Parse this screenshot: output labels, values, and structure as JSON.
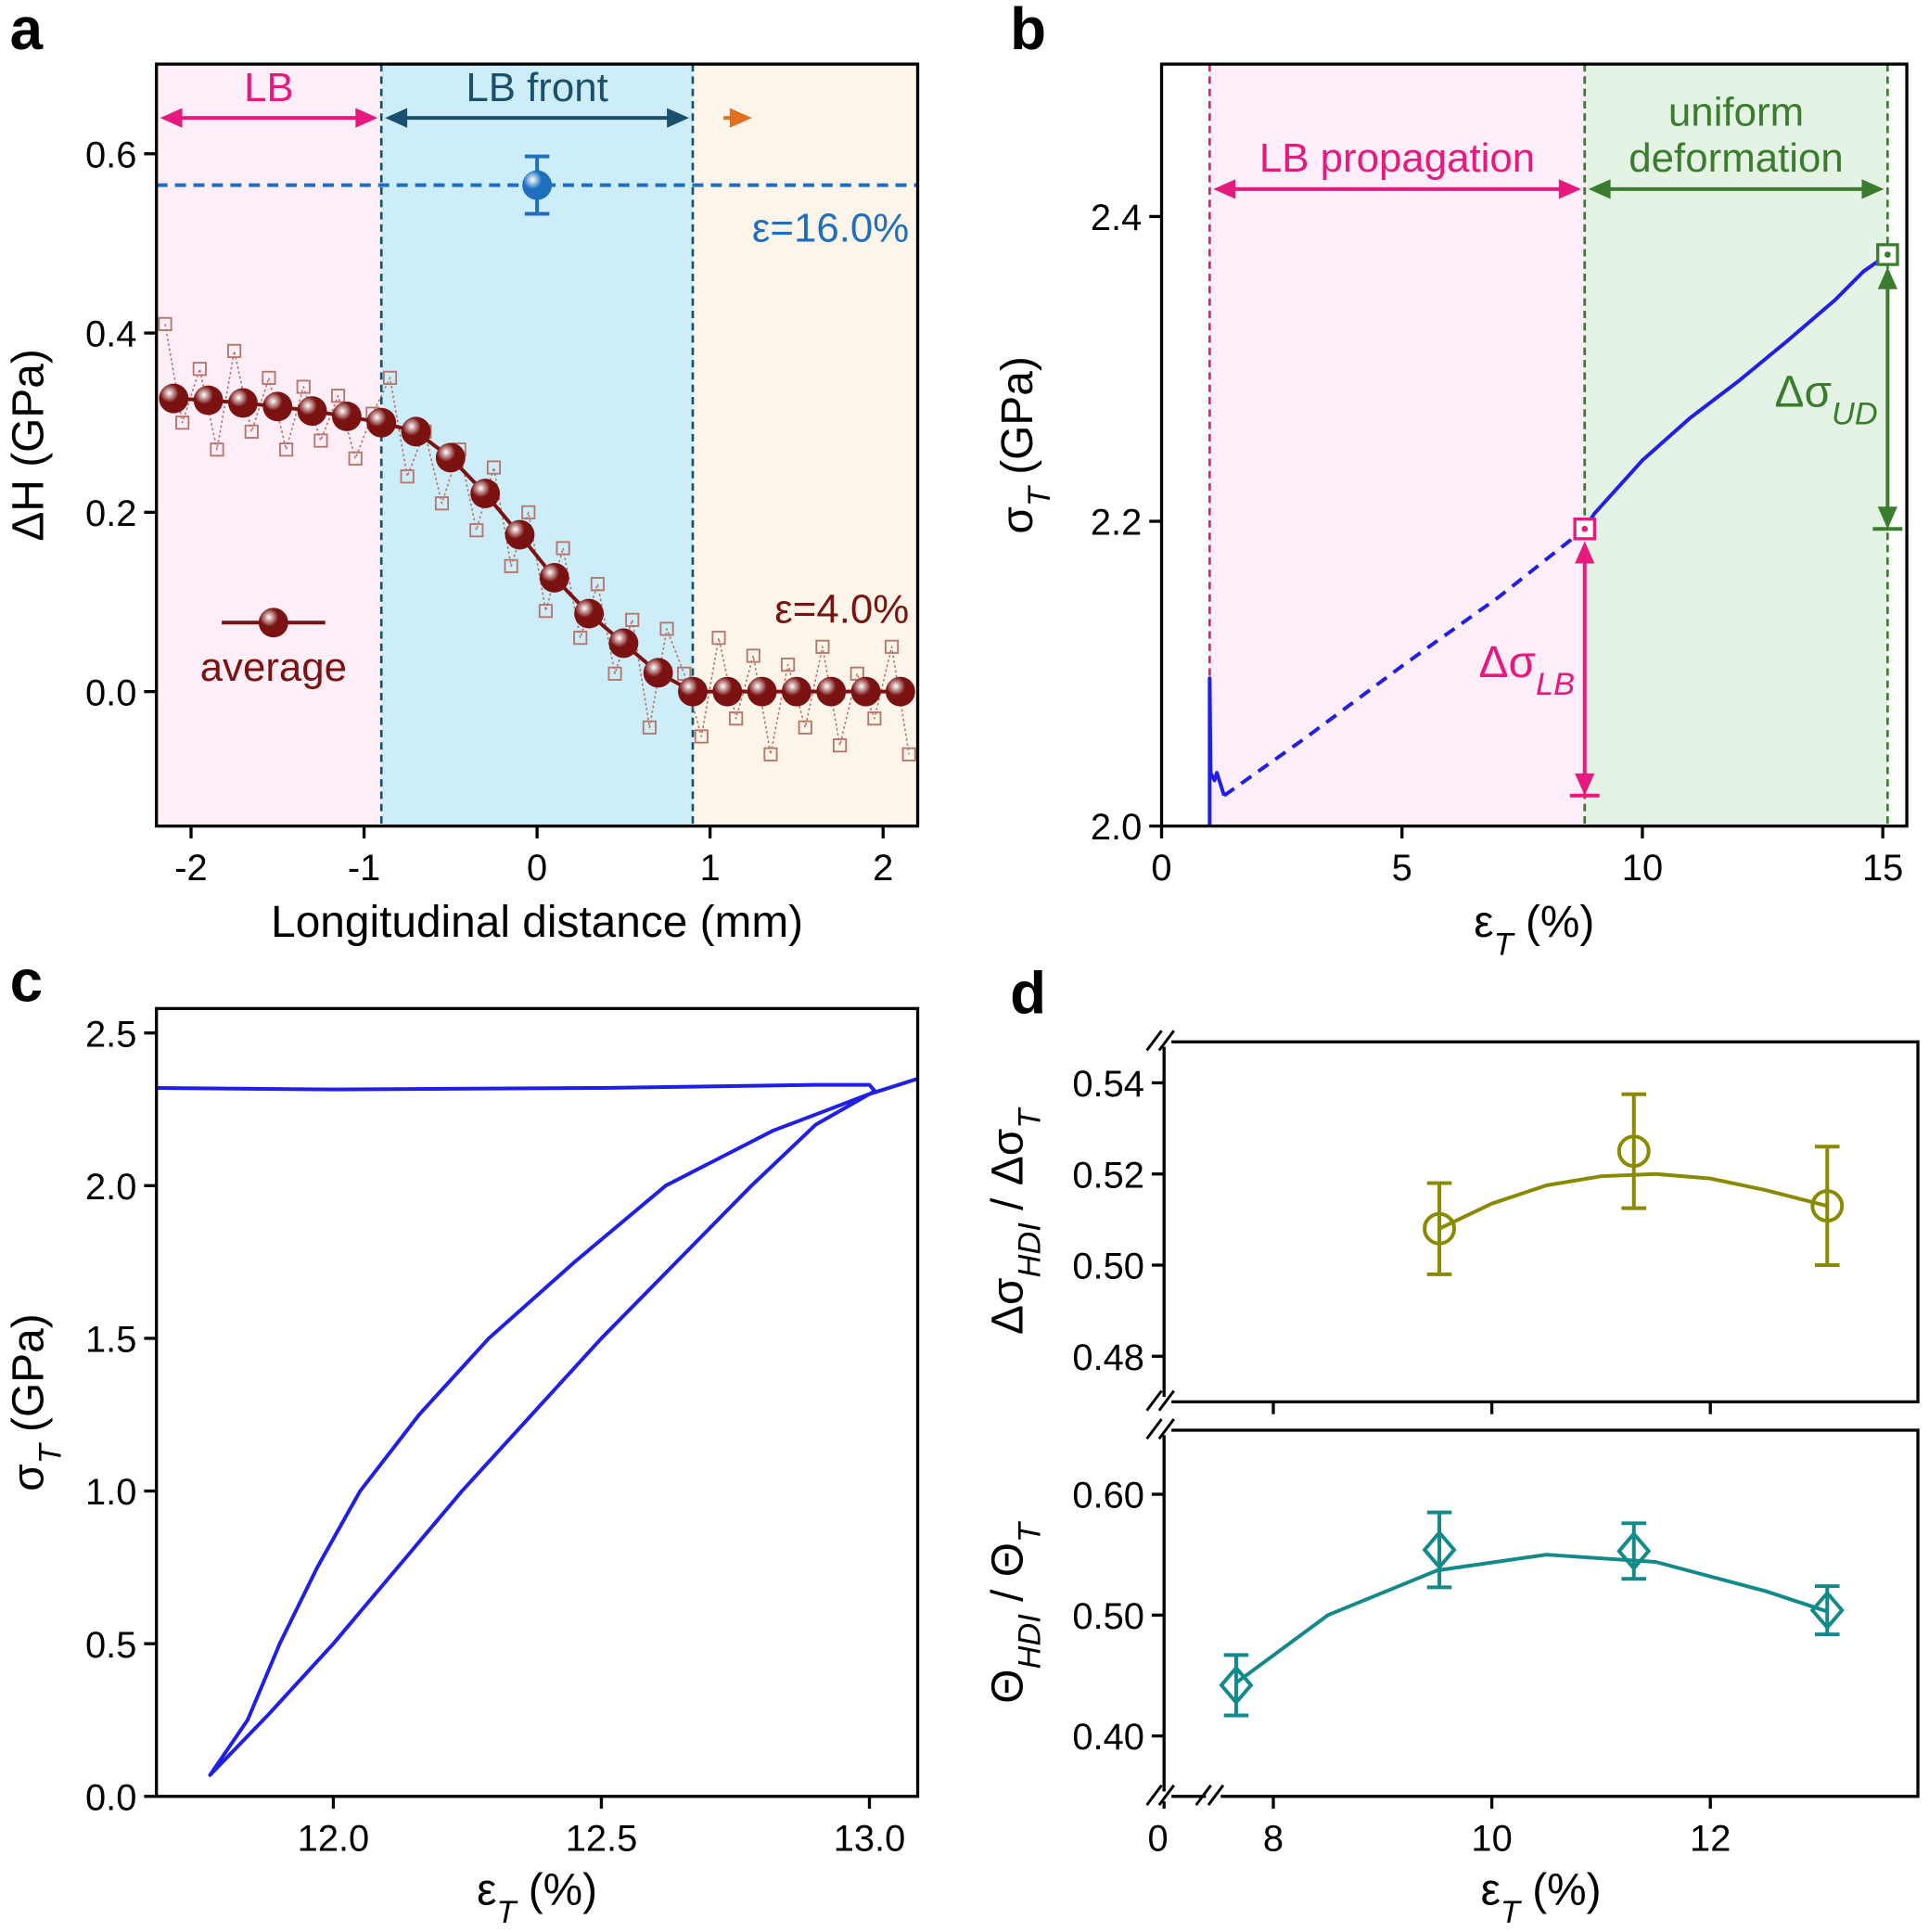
{
  "chart_data": [
    {
      "type": "line",
      "panel_label": "a",
      "xlabel": "Longitudinal distance (mm)",
      "ylabel": "ΔH (GPa)",
      "xlim": [
        -2.2,
        2.2
      ],
      "ylim": [
        -0.15,
        0.7
      ],
      "xticks": [
        -2,
        -1,
        0,
        1,
        2
      ],
      "yticks": [
        {
          "value": 0,
          "label": "0.0"
        },
        0.2,
        0.4,
        0.6
      ],
      "regions": [
        {
          "label": "LB",
          "range": [
            -2.2,
            -0.9
          ],
          "fill": "#fdeef8",
          "color": "#e6197e",
          "dashed_edges": false
        },
        {
          "label": "LB front",
          "range": [
            -0.9,
            0.9
          ],
          "fill": "#cdedf9",
          "color": "#1b4f6e",
          "dashed_edges": true
        },
        {
          "range": [
            0.9,
            2.2
          ],
          "fill": "#fdf5e9",
          "color": "#e07020",
          "dashed_edges": false
        }
      ],
      "series": [
        {
          "color": "#b5776b",
          "marker": "square-open",
          "linestyle": "dotted",
          "x": [
            -2.15,
            -2.05,
            -1.95,
            -1.85,
            -1.75,
            -1.65,
            -1.55,
            -1.45,
            -1.35,
            -1.25,
            -1.15,
            -1.05,
            -0.95,
            -0.85,
            -0.75,
            -0.65,
            -0.55,
            -0.45,
            -0.35,
            -0.25,
            -0.15,
            -0.05,
            0.05,
            0.15,
            0.25,
            0.35,
            0.45,
            0.55,
            0.65,
            0.75,
            0.85,
            0.95,
            1.05,
            1.15,
            1.25,
            1.35,
            1.45,
            1.55,
            1.65,
            1.75,
            1.85,
            1.95,
            2.05,
            2.15
          ],
          "values": [
            0.41,
            0.3,
            0.36,
            0.27,
            0.38,
            0.29,
            0.35,
            0.27,
            0.34,
            0.28,
            0.33,
            0.26,
            0.31,
            0.35,
            0.24,
            0.29,
            0.21,
            0.27,
            0.18,
            0.25,
            0.14,
            0.2,
            0.09,
            0.16,
            0.06,
            0.12,
            0.02,
            0.08,
            -0.04,
            0.07,
            0.02,
            -0.05,
            0.06,
            -0.03,
            0.04,
            -0.07,
            0.03,
            -0.04,
            0.05,
            -0.06,
            0.02,
            -0.03,
            0.05,
            -0.07
          ]
        },
        {
          "name": "average",
          "color": "#7a1212",
          "marker": "sphere",
          "linestyle": "solid",
          "x": [
            -2.1,
            -1.9,
            -1.7,
            -1.5,
            -1.3,
            -1.1,
            -0.9,
            -0.7,
            -0.5,
            -0.3,
            -0.1,
            0.1,
            0.3,
            0.5,
            0.7,
            0.9,
            1.1,
            1.3,
            1.5,
            1.7,
            1.9,
            2.1
          ],
          "values": [
            0.327,
            0.325,
            0.322,
            0.318,
            0.313,
            0.307,
            0.3,
            0.29,
            0.261,
            0.221,
            0.175,
            0.127,
            0.087,
            0.054,
            0.021,
            0,
            0,
            0,
            0,
            0,
            0,
            0
          ]
        },
        {
          "color": "#1f6fbf",
          "marker": "sphere",
          "linestyle": "none",
          "hline": true,
          "x": [
            0
          ],
          "values": [
            0.565
          ],
          "errors": [
            0.032
          ]
        }
      ],
      "annotations": [
        {
          "text": "ε=16.0%",
          "color": "#1f6fbf"
        },
        {
          "text": "ε=4.0%",
          "color": "#7a1212"
        }
      ],
      "legend": "lower left"
    },
    {
      "type": "line",
      "panel_label": "b",
      "xlabel": [
        {
          "text": "ε"
        },
        {
          "text": "T",
          "sub": true
        },
        {
          "text": " (%)"
        }
      ],
      "ylabel": [
        {
          "text": "σ"
        },
        {
          "text": "T",
          "sub": true
        },
        {
          "text": " (GPa)"
        }
      ],
      "xlim": [
        0,
        15.5
      ],
      "ylim": [
        2.0,
        2.5
      ],
      "xticks": [
        0,
        5,
        10,
        15
      ],
      "yticks": [
        {
          "value": 2,
          "label": "2.0"
        },
        2.2,
        2.4
      ],
      "regions": [
        {
          "label": "LB propagation",
          "range": [
            1.0,
            8.8
          ],
          "fill": "#fdeefa",
          "color": "#e6197e",
          "dashed_edges": true
        },
        {
          "label": "uniform deformation",
          "range": [
            8.8,
            15.1
          ],
          "fill": "#e4f3e4",
          "color": "#3b7d2f",
          "dashed_edges": true
        }
      ],
      "series": [
        {
          "color": "#1f1fe8",
          "linestyle": "solid",
          "x": [
            1.0,
            1.0,
            1.02,
            1.1,
            1.15,
            1.3
          ],
          "values": [
            2.0,
            2.097,
            2.035,
            2.03,
            2.035,
            2.02
          ]
        },
        {
          "color": "#1f1fe8",
          "linestyle": "dashed",
          "x": [
            1.3,
            3,
            5,
            7,
            8.8
          ],
          "values": [
            2.02,
            2.058,
            2.105,
            2.15,
            2.195
          ]
        },
        {
          "color": "#1f1fe8",
          "linestyle": "solid",
          "x": [
            8.8,
            9.0,
            10,
            11,
            12,
            13,
            14,
            14.6,
            15.1
          ],
          "values": [
            2.195,
            2.205,
            2.24,
            2.268,
            2.292,
            2.318,
            2.345,
            2.364,
            2.375
          ]
        },
        {
          "color": "#e6197e",
          "marker": "square-dot",
          "linestyle": "none",
          "x": [
            8.8
          ],
          "values": [
            2.195
          ]
        },
        {
          "color": "#3b7d2f",
          "marker": "square-dot",
          "linestyle": "none",
          "x": [
            15.1
          ],
          "values": [
            2.375
          ]
        }
      ],
      "deltas": [
        {
          "label": [
            {
              "text": "Δσ"
            },
            {
              "text": "LB",
              "sub": true
            }
          ],
          "x": 8.8,
          "y": [
            2.02,
            2.195
          ],
          "color": "#e6197e"
        },
        {
          "label": [
            {
              "text": "Δσ"
            },
            {
              "text": "UD",
              "sub": true
            }
          ],
          "x": 15.1,
          "y": [
            2.195,
            2.375
          ],
          "color": "#3b7d2f"
        }
      ]
    },
    {
      "type": "line",
      "panel_label": "c",
      "xlabel": [
        {
          "text": "ε"
        },
        {
          "text": "T",
          "sub": true
        },
        {
          "text": " (%)"
        }
      ],
      "ylabel": [
        {
          "text": "σ"
        },
        {
          "text": "T",
          "sub": true
        },
        {
          "text": " (GPa)"
        }
      ],
      "xlim": [
        11.67,
        13.09
      ],
      "ylim": [
        0,
        2.58
      ],
      "xticks": [
        {
          "value": 12,
          "label": "12.0"
        },
        12.5,
        {
          "value": 13,
          "label": "13.0"
        }
      ],
      "yticks": [
        {
          "value": 0,
          "label": "0.0"
        },
        0.5,
        {
          "value": 1,
          "label": "1.0"
        },
        1.5,
        {
          "value": 2,
          "label": "2.0"
        },
        2.5
      ],
      "series": [
        {
          "color": "#1f1fe8",
          "linestyle": "solid",
          "x": [
            11.67,
            12.0,
            12.5,
            12.9,
            13.0,
            13.01,
            12.9,
            12.78,
            12.64,
            12.5,
            12.37,
            12.24,
            12.12,
            12.0,
            11.88,
            11.77,
            11.84,
            11.9,
            11.97,
            12.05,
            12.16,
            12.29,
            12.45,
            12.62,
            12.82,
            13.0,
            13.09
          ],
          "values": [
            2.32,
            2.315,
            2.32,
            2.33,
            2.33,
            2.31,
            2.2,
            2.0,
            1.75,
            1.5,
            1.25,
            1.0,
            0.75,
            0.5,
            0.27,
            0.07,
            0.25,
            0.5,
            0.75,
            1.0,
            1.25,
            1.5,
            1.75,
            2.0,
            2.18,
            2.3,
            2.35
          ]
        }
      ]
    },
    {
      "type": "scatter",
      "panel_label": "d",
      "axis_break": true,
      "xtick_labels": false,
      "ylabel": [
        {
          "text": "Δσ"
        },
        {
          "text": "HDI",
          "sub": true
        },
        {
          "text": " / Δσ"
        },
        {
          "text": "T",
          "sub": true
        }
      ],
      "xlim": [
        7,
        13.9
      ],
      "ylim": [
        0.47,
        0.549
      ],
      "xticks": [
        8,
        10,
        12
      ],
      "yticks": [
        0.48,
        {
          "value": 0.5,
          "label": "0.50"
        },
        0.52,
        0.54
      ],
      "series": [
        {
          "color": "#8a8a00",
          "linestyle": "solid",
          "x": [
            9.52,
            10,
            10.5,
            11,
            11.5,
            12,
            12.5,
            13.07
          ],
          "values": [
            0.508,
            0.5135,
            0.5175,
            0.5195,
            0.52,
            0.519,
            0.5165,
            0.513
          ]
        },
        {
          "color": "#8a8a00",
          "marker": "circle-open",
          "linestyle": "none",
          "x": [
            9.52,
            11.3,
            13.07
          ],
          "values": [
            0.508,
            0.525,
            0.513
          ],
          "errors": [
            0.01,
            0.0125,
            0.013
          ]
        }
      ]
    },
    {
      "type": "scatter",
      "axis_break": true,
      "xtick_labels": true,
      "xlabel": [
        {
          "text": "ε"
        },
        {
          "text": "T",
          "sub": true
        },
        {
          "text": " (%)"
        }
      ],
      "ylabel": [
        {
          "text": "Θ"
        },
        {
          "text": "HDI",
          "sub": true
        },
        {
          "text": " / Θ"
        },
        {
          "text": "T",
          "sub": true
        }
      ],
      "xlim": [
        7,
        13.9
      ],
      "ylim": [
        0.35,
        0.653
      ],
      "xticks": [
        0,
        8,
        10,
        12
      ],
      "yticks": [
        {
          "value": 0.4,
          "label": "0.40"
        },
        {
          "value": 0.5,
          "label": "0.50"
        },
        {
          "value": 0.6,
          "label": "0.60"
        }
      ],
      "series": [
        {
          "color": "#13898a",
          "linestyle": "solid",
          "x": [
            7.66,
            8.5,
            9.5,
            10.5,
            11.5,
            12.5,
            13.07
          ],
          "values": [
            0.444,
            0.5,
            0.537,
            0.55,
            0.544,
            0.52,
            0.503
          ]
        },
        {
          "color": "#13898a",
          "marker": "diamond-open",
          "linestyle": "none",
          "x": [
            7.66,
            9.52,
            11.3,
            13.07
          ],
          "values": [
            0.442,
            0.554,
            0.553,
            0.504
          ],
          "errors": [
            0.025,
            0.031,
            0.023,
            0.02
          ]
        }
      ]
    }
  ]
}
